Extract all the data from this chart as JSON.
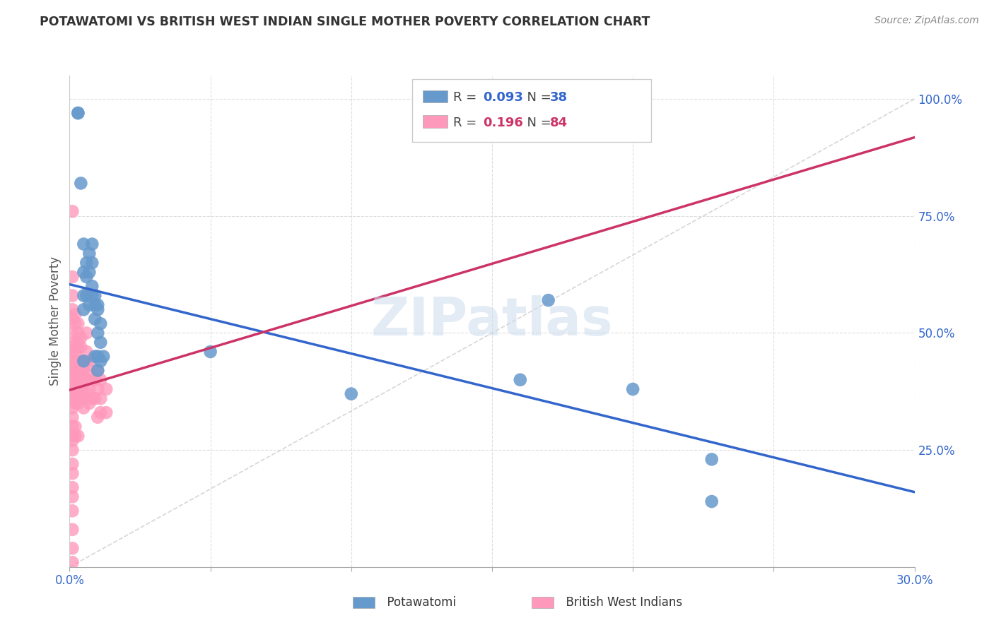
{
  "title": "POTAWATOMI VS BRITISH WEST INDIAN SINGLE MOTHER POVERTY CORRELATION CHART",
  "source": "Source: ZipAtlas.com",
  "ylabel": "Single Mother Poverty",
  "xlim": [
    0.0,
    0.3
  ],
  "ylim": [
    0.0,
    1.05
  ],
  "xticks": [
    0.0,
    0.05,
    0.1,
    0.15,
    0.2,
    0.25,
    0.3
  ],
  "xticklabels": [
    "0.0%",
    "",
    "",
    "",
    "",
    "",
    "30.0%"
  ],
  "yticks_right": [
    0.0,
    0.25,
    0.5,
    0.75,
    1.0
  ],
  "yticklabels_right": [
    "",
    "25.0%",
    "50.0%",
    "75.0%",
    "100.0%"
  ],
  "legend_blue_r": "0.093",
  "legend_blue_n": "38",
  "legend_pink_r": "0.196",
  "legend_pink_n": "84",
  "blue_color": "#6699CC",
  "pink_color": "#FF99BB",
  "blue_line_color": "#3366CC",
  "pink_line_color": "#CC3366",
  "dashed_line_color": "#CCCCCC",
  "watermark": "ZIPatlas",
  "blue_scatter_x": [
    0.003,
    0.003,
    0.004,
    0.005,
    0.005,
    0.005,
    0.005,
    0.005,
    0.006,
    0.006,
    0.006,
    0.007,
    0.007,
    0.007,
    0.008,
    0.008,
    0.008,
    0.008,
    0.009,
    0.009,
    0.009,
    0.009,
    0.01,
    0.01,
    0.01,
    0.01,
    0.01,
    0.011,
    0.011,
    0.011,
    0.012,
    0.05,
    0.1,
    0.16,
    0.17,
    0.2,
    0.228,
    0.228
  ],
  "blue_scatter_y": [
    0.97,
    0.97,
    0.82,
    0.69,
    0.63,
    0.58,
    0.55,
    0.44,
    0.65,
    0.62,
    0.58,
    0.67,
    0.63,
    0.56,
    0.69,
    0.65,
    0.6,
    0.58,
    0.58,
    0.56,
    0.53,
    0.45,
    0.56,
    0.55,
    0.5,
    0.45,
    0.42,
    0.52,
    0.48,
    0.44,
    0.45,
    0.46,
    0.37,
    0.4,
    0.57,
    0.38,
    0.23,
    0.14
  ],
  "pink_scatter_x": [
    0.001,
    0.001,
    0.001,
    0.001,
    0.001,
    0.001,
    0.001,
    0.001,
    0.001,
    0.001,
    0.001,
    0.001,
    0.001,
    0.001,
    0.001,
    0.001,
    0.001,
    0.001,
    0.001,
    0.001,
    0.001,
    0.001,
    0.001,
    0.001,
    0.001,
    0.001,
    0.001,
    0.001,
    0.001,
    0.001,
    0.002,
    0.002,
    0.002,
    0.002,
    0.002,
    0.002,
    0.002,
    0.002,
    0.002,
    0.002,
    0.002,
    0.002,
    0.003,
    0.003,
    0.003,
    0.003,
    0.003,
    0.003,
    0.003,
    0.003,
    0.003,
    0.003,
    0.004,
    0.004,
    0.004,
    0.004,
    0.004,
    0.004,
    0.005,
    0.005,
    0.005,
    0.005,
    0.005,
    0.006,
    0.006,
    0.006,
    0.006,
    0.006,
    0.007,
    0.007,
    0.007,
    0.007,
    0.008,
    0.008,
    0.009,
    0.009,
    0.01,
    0.01,
    0.01,
    0.011,
    0.011,
    0.011,
    0.013,
    0.013
  ],
  "pink_scatter_y": [
    0.76,
    0.62,
    0.58,
    0.55,
    0.53,
    0.5,
    0.47,
    0.46,
    0.44,
    0.43,
    0.42,
    0.41,
    0.4,
    0.38,
    0.37,
    0.36,
    0.34,
    0.32,
    0.3,
    0.28,
    0.27,
    0.25,
    0.22,
    0.2,
    0.17,
    0.15,
    0.12,
    0.08,
    0.04,
    0.01,
    0.54,
    0.52,
    0.48,
    0.46,
    0.44,
    0.43,
    0.41,
    0.39,
    0.37,
    0.35,
    0.3,
    0.28,
    0.52,
    0.5,
    0.48,
    0.47,
    0.44,
    0.42,
    0.4,
    0.38,
    0.35,
    0.28,
    0.49,
    0.47,
    0.44,
    0.42,
    0.38,
    0.36,
    0.44,
    0.42,
    0.39,
    0.36,
    0.34,
    0.5,
    0.46,
    0.43,
    0.4,
    0.37,
    0.44,
    0.41,
    0.38,
    0.35,
    0.4,
    0.36,
    0.4,
    0.36,
    0.42,
    0.38,
    0.32,
    0.4,
    0.36,
    0.33,
    0.38,
    0.33
  ]
}
